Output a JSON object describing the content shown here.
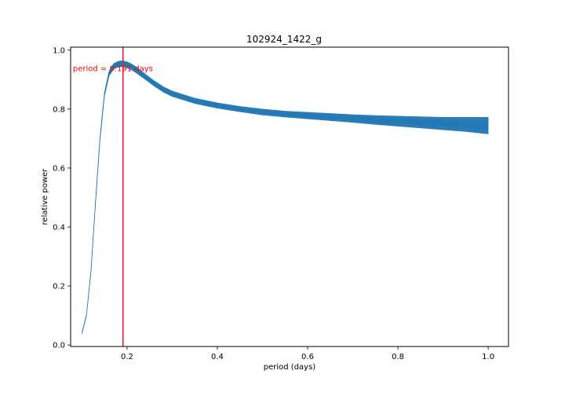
{
  "chart_data": {
    "type": "line",
    "title": "102924_1422_g",
    "xlabel": "period (days)",
    "ylabel": "relative power",
    "xlim": [
      0.075,
      1.045
    ],
    "ylim": [
      -0.005,
      1.01
    ],
    "xticks": [
      0.2,
      0.4,
      0.6,
      0.8,
      1.0
    ],
    "xtick_labels": [
      "0.2",
      "0.4",
      "0.6",
      "0.8",
      "1.0"
    ],
    "yticks": [
      0.0,
      0.2,
      0.4,
      0.6,
      0.8,
      1.0
    ],
    "ytick_labels": [
      "0.0",
      "0.2",
      "0.4",
      "0.6",
      "0.8",
      "1.0"
    ],
    "grid": false,
    "series": [
      {
        "color": "#1f77b4",
        "x": [
          0.1,
          0.11,
          0.12,
          0.13,
          0.14,
          0.15,
          0.16,
          0.17,
          0.18,
          0.19,
          0.2,
          0.21,
          0.22,
          0.24,
          0.26,
          0.28,
          0.3,
          0.35,
          0.4,
          0.45,
          0.5,
          0.55,
          0.6,
          0.65,
          0.7,
          0.75,
          0.8,
          0.85,
          0.9,
          0.95,
          1.0
        ],
        "y": [
          0.04,
          0.1,
          0.25,
          0.48,
          0.7,
          0.85,
          0.92,
          0.945,
          0.952,
          0.954,
          0.95,
          0.943,
          0.933,
          0.91,
          0.887,
          0.867,
          0.852,
          0.828,
          0.812,
          0.8,
          0.79,
          0.783,
          0.778,
          0.773,
          0.768,
          0.763,
          0.759,
          0.755,
          0.751,
          0.748,
          0.744
        ],
        "band_halfwidth": [
          0.002,
          0.002,
          0.003,
          0.004,
          0.005,
          0.006,
          0.008,
          0.009,
          0.01,
          0.01,
          0.01,
          0.01,
          0.01,
          0.009,
          0.009,
          0.009,
          0.009,
          0.009,
          0.009,
          0.009,
          0.01,
          0.01,
          0.011,
          0.012,
          0.013,
          0.015,
          0.017,
          0.019,
          0.021,
          0.024,
          0.028
        ]
      }
    ],
    "vline": {
      "x": 0.191,
      "color": "#d62728"
    },
    "annotation": {
      "text": "period = 0.191 days",
      "x": 0.08,
      "y": 0.94,
      "color": "#ff0000"
    }
  }
}
